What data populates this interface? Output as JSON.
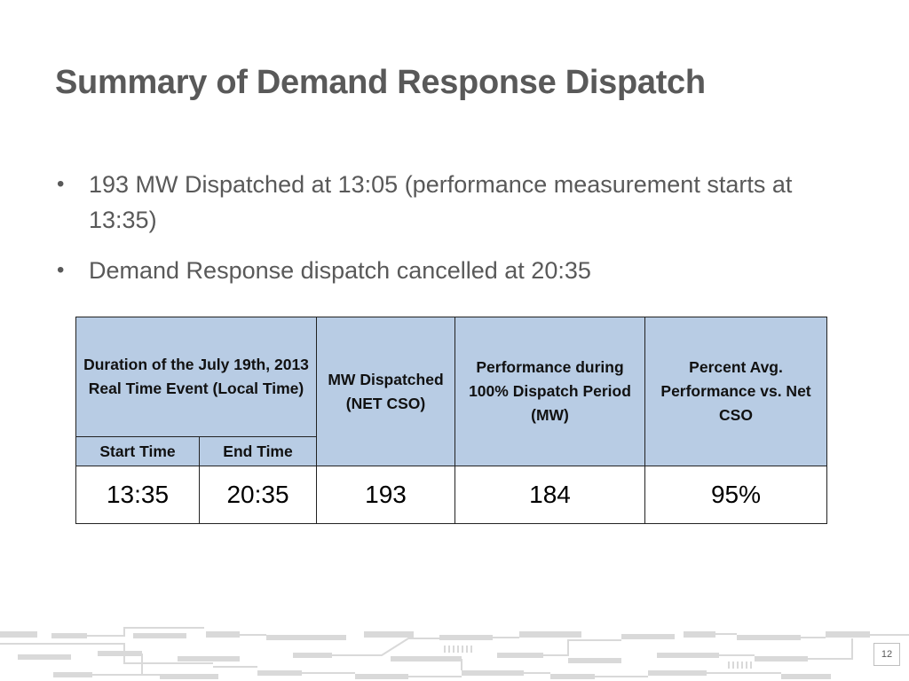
{
  "slide": {
    "title": "Summary of Demand Response Dispatch",
    "bullets": [
      "193 MW Dispatched at 13:05 (performance measurement starts at 13:35)",
      "Demand Response dispatch cancelled at 20:35"
    ],
    "page_number": "12"
  },
  "table": {
    "headers": {
      "duration": "Duration of the July 19th, 2013 Real Time Event (Local Time)",
      "start_time": "Start Time",
      "end_time": "End Time",
      "mw_dispatched": "MW Dispatched (NET CSO)",
      "performance": "Performance during 100% Dispatch Period (MW)",
      "percent_avg": "Percent Avg. Performance vs. Net CSO"
    },
    "row": {
      "start_time": "13:35",
      "end_time": "20:35",
      "mw_dispatched": "193",
      "performance": "184",
      "percent_avg": "95%"
    }
  },
  "colors": {
    "header_fill": "#b8cce4",
    "text": "#595959",
    "circuit_gray": "#d9d9d9"
  }
}
